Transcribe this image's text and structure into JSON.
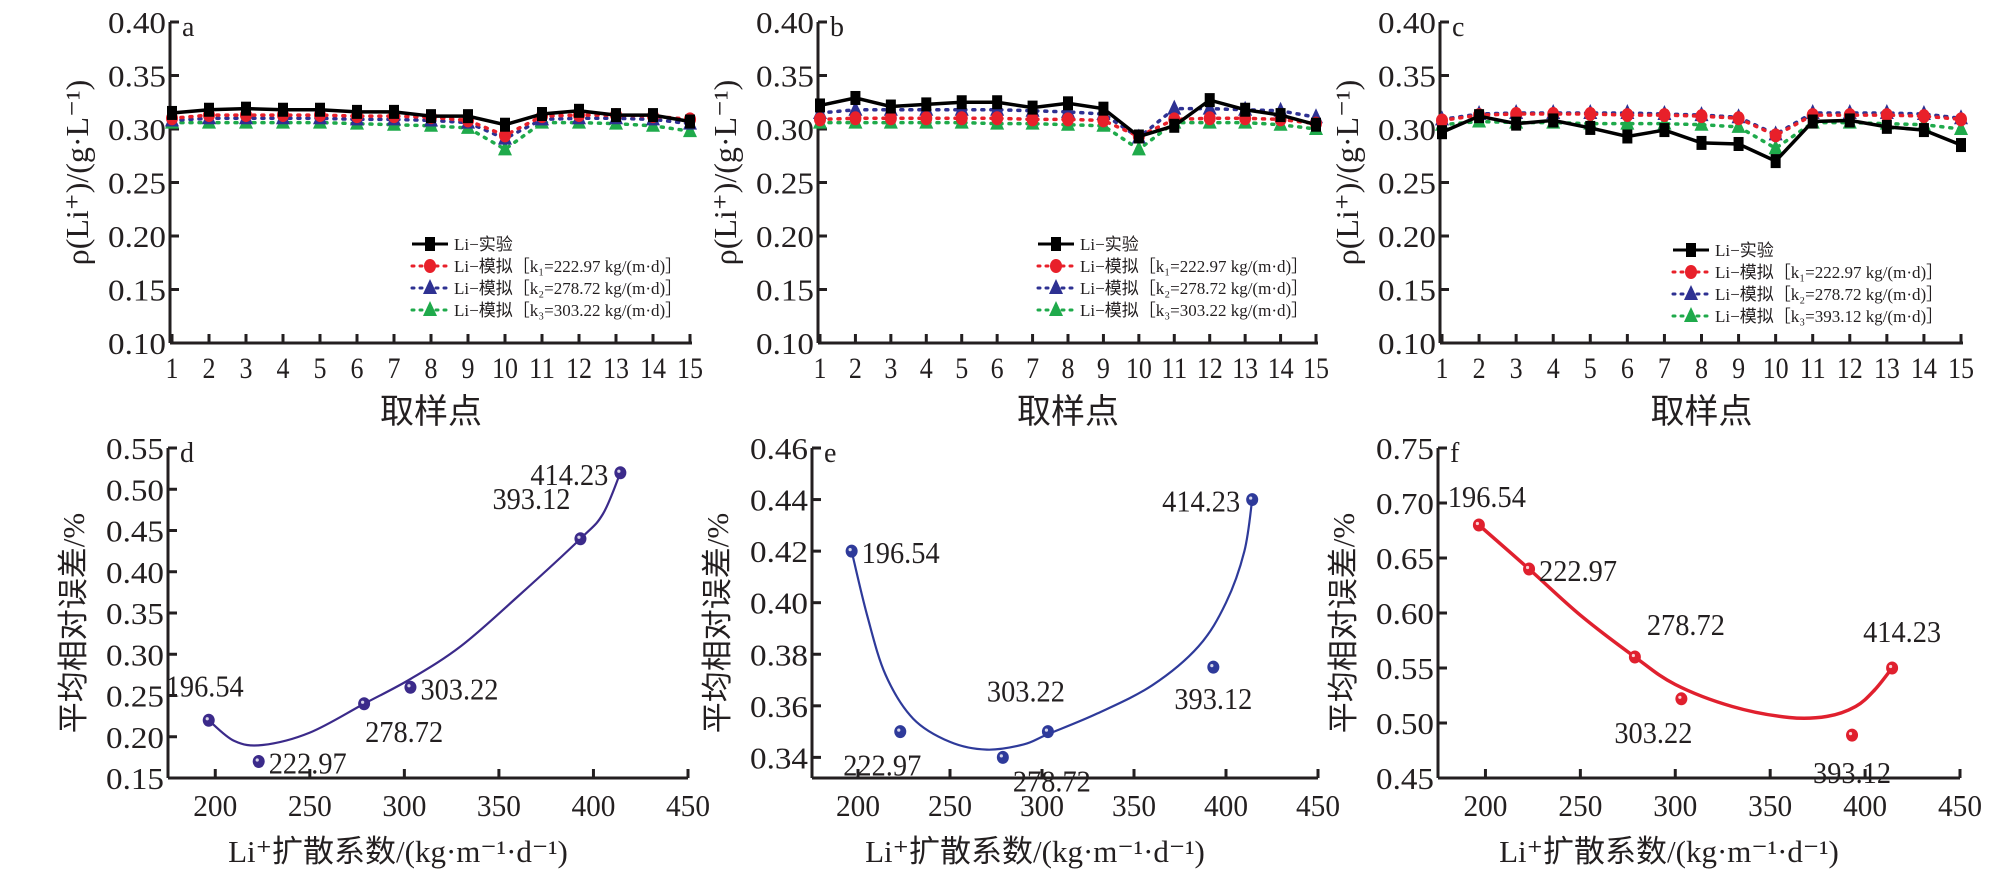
{
  "figure": {
    "panels_top_xlabel": "取样点",
    "panels_top_ylabel": "ρ(Li⁺)/(g·L⁻¹)",
    "panels_bottom_xlabel": "Li⁺扩散系数/(kg·m⁻¹·d⁻¹)",
    "panels_bottom_ylabel": "平均相对误差/%"
  },
  "colors": {
    "experiment": "#000000",
    "k1": "#e8202a",
    "k2": "#2e3192",
    "k3": "#1faa4b",
    "fit_d": "#3b2a8a",
    "fit_e": "#2e3a9a",
    "fit_f": "#e0202e"
  },
  "chart_data": [
    {
      "id": "a",
      "panel_letter": "a",
      "type": "line",
      "title": "",
      "xlabel": "取样点",
      "ylabel": "ρ(Li⁺)/(g·L⁻¹)",
      "x": [
        1,
        2,
        3,
        4,
        5,
        6,
        7,
        8,
        9,
        10,
        11,
        12,
        13,
        14,
        15
      ],
      "xticks": [
        "1",
        "2",
        "3",
        "4",
        "5",
        "6",
        "7",
        "8",
        "9",
        "10",
        "11",
        "12",
        "13",
        "14",
        "15"
      ],
      "ylim": [
        0.1,
        0.4
      ],
      "yticks": [
        "0.10",
        "0.15",
        "0.20",
        "0.25",
        "0.30",
        "0.35",
        "0.40"
      ],
      "legend_position": "bottom-right",
      "series": [
        {
          "name": "Li−实验",
          "style": "solid",
          "marker": "square",
          "color_key": "experiment",
          "values": [
            0.315,
            0.318,
            0.319,
            0.318,
            0.318,
            0.316,
            0.316,
            0.312,
            0.312,
            0.304,
            0.314,
            0.317,
            0.313,
            0.313,
            0.307
          ]
        },
        {
          "name": "Li−模拟［k₁=222.97 kg/(m·d)］",
          "style": "dotted",
          "marker": "circle",
          "color_key": "k1",
          "values": [
            0.31,
            0.313,
            0.313,
            0.313,
            0.313,
            0.312,
            0.312,
            0.311,
            0.308,
            0.294,
            0.312,
            0.313,
            0.313,
            0.312,
            0.309
          ]
        },
        {
          "name": "Li−模拟［k₂=278.72 kg/(m·d)］",
          "style": "dotted",
          "marker": "triangle",
          "color_key": "k2",
          "values": [
            0.308,
            0.31,
            0.31,
            0.31,
            0.31,
            0.309,
            0.309,
            0.308,
            0.306,
            0.291,
            0.309,
            0.31,
            0.31,
            0.309,
            0.305
          ]
        },
        {
          "name": "Li−模拟［k₃=303.22 kg/(m·d)］",
          "style": "dotted",
          "marker": "triangle",
          "color_key": "k3",
          "values": [
            0.306,
            0.306,
            0.306,
            0.306,
            0.306,
            0.305,
            0.304,
            0.303,
            0.301,
            0.281,
            0.306,
            0.306,
            0.305,
            0.303,
            0.298
          ]
        }
      ]
    },
    {
      "id": "b",
      "panel_letter": "b",
      "type": "line",
      "title": "",
      "xlabel": "取样点",
      "ylabel": "ρ(Li⁺)/(g·L⁻¹)",
      "x": [
        1,
        2,
        3,
        4,
        5,
        6,
        7,
        8,
        9,
        10,
        11,
        12,
        13,
        14,
        15
      ],
      "xticks": [
        "1",
        "2",
        "3",
        "4",
        "5",
        "6",
        "7",
        "8",
        "9",
        "10",
        "11",
        "12",
        "13",
        "14",
        "15"
      ],
      "ylim": [
        0.1,
        0.4
      ],
      "yticks": [
        "0.10",
        "0.15",
        "0.20",
        "0.25",
        "0.30",
        "0.35",
        "0.40"
      ],
      "legend_position": "bottom-right",
      "series": [
        {
          "name": "Li−实验",
          "style": "solid",
          "marker": "square",
          "color_key": "experiment",
          "values": [
            0.322,
            0.329,
            0.321,
            0.323,
            0.325,
            0.325,
            0.32,
            0.324,
            0.319,
            0.293,
            0.303,
            0.327,
            0.318,
            0.313,
            0.304
          ]
        },
        {
          "name": "Li−模拟［k₁=222.97 kg/(m·d)］",
          "style": "dotted",
          "marker": "circle",
          "color_key": "k1",
          "values": [
            0.309,
            0.31,
            0.31,
            0.31,
            0.31,
            0.31,
            0.309,
            0.309,
            0.308,
            0.293,
            0.309,
            0.31,
            0.31,
            0.309,
            0.305
          ]
        },
        {
          "name": "Li−模拟［k₂=278.72 kg/(m·d)］",
          "style": "dotted",
          "marker": "triangle",
          "color_key": "k2",
          "values": [
            0.315,
            0.318,
            0.318,
            0.318,
            0.318,
            0.318,
            0.317,
            0.316,
            0.314,
            0.292,
            0.319,
            0.319,
            0.318,
            0.317,
            0.311
          ]
        },
        {
          "name": "Li−模拟［k₃=303.22 kg/(m·d)］",
          "style": "dotted",
          "marker": "triangle",
          "color_key": "k3",
          "values": [
            0.306,
            0.306,
            0.306,
            0.306,
            0.306,
            0.305,
            0.305,
            0.304,
            0.303,
            0.281,
            0.306,
            0.306,
            0.306,
            0.304,
            0.3
          ]
        }
      ]
    },
    {
      "id": "c",
      "panel_letter": "c",
      "type": "line",
      "title": "",
      "xlabel": "取样点",
      "ylabel": "ρ(Li⁺)/(g·L⁻¹)",
      "x": [
        1,
        2,
        3,
        4,
        5,
        6,
        7,
        8,
        9,
        10,
        11,
        12,
        13,
        14,
        15
      ],
      "xticks": [
        "1",
        "2",
        "3",
        "4",
        "5",
        "6",
        "7",
        "8",
        "9",
        "10",
        "11",
        "12",
        "13",
        "14",
        "15"
      ],
      "ylim": [
        0.1,
        0.4
      ],
      "yticks": [
        "0.10",
        "0.15",
        "0.20",
        "0.25",
        "0.30",
        "0.35",
        "0.40"
      ],
      "legend_position": "bottom-right",
      "series": [
        {
          "name": "Li−实验",
          "style": "solid",
          "marker": "square",
          "color_key": "experiment",
          "values": [
            0.297,
            0.312,
            0.305,
            0.308,
            0.301,
            0.293,
            0.299,
            0.287,
            0.286,
            0.27,
            0.307,
            0.308,
            0.302,
            0.299,
            0.285
          ]
        },
        {
          "name": "Li−模拟［k₁=222.97 kg/(m·d)］",
          "style": "dotted",
          "marker": "circle",
          "color_key": "k1",
          "values": [
            0.308,
            0.313,
            0.314,
            0.314,
            0.314,
            0.313,
            0.313,
            0.312,
            0.31,
            0.294,
            0.313,
            0.313,
            0.313,
            0.312,
            0.309
          ]
        },
        {
          "name": "Li−模拟［k₂=278.72 kg/(m·d)］",
          "style": "dotted",
          "marker": "triangle",
          "color_key": "k2",
          "values": [
            0.309,
            0.314,
            0.315,
            0.315,
            0.315,
            0.315,
            0.314,
            0.313,
            0.311,
            0.295,
            0.315,
            0.315,
            0.315,
            0.314,
            0.31
          ]
        },
        {
          "name": "Li−模拟［k₃=393.12 kg/(m·d)］",
          "style": "dotted",
          "marker": "triangle",
          "color_key": "k3",
          "values": [
            0.304,
            0.307,
            0.306,
            0.306,
            0.305,
            0.305,
            0.305,
            0.304,
            0.302,
            0.282,
            0.306,
            0.306,
            0.305,
            0.304,
            0.3
          ]
        }
      ]
    },
    {
      "id": "d",
      "panel_letter": "d",
      "type": "scatter",
      "title": "",
      "xlabel": "Li⁺扩散系数/(kg·m⁻¹·d⁻¹)",
      "ylabel": "平均相对误差/%",
      "xlim": [
        175,
        450
      ],
      "xticks": [
        200,
        250,
        300,
        350,
        400,
        450
      ],
      "ylim": [
        0.15,
        0.55
      ],
      "yticks": [
        "0.15",
        "0.20",
        "0.25",
        "0.30",
        "0.35",
        "0.40",
        "0.45",
        "0.50",
        "0.55"
      ],
      "color_key": "fit_d",
      "points": [
        {
          "x": 196.54,
          "y": 0.22,
          "label": "196.54",
          "label_pos": "above"
        },
        {
          "x": 222.97,
          "y": 0.17,
          "label": "222.97",
          "label_pos": "right"
        },
        {
          "x": 278.72,
          "y": 0.24,
          "label": "278.72",
          "label_pos": "below"
        },
        {
          "x": 303.22,
          "y": 0.26,
          "label": "303.22",
          "label_pos": "right"
        },
        {
          "x": 393.12,
          "y": 0.44,
          "label": "393.12",
          "label_pos": "above-left"
        },
        {
          "x": 414.23,
          "y": 0.52,
          "label": "414.23",
          "label_pos": "left"
        }
      ],
      "fit_curve": [
        [
          196.54,
          0.22
        ],
        [
          210,
          0.195
        ],
        [
          225,
          0.19
        ],
        [
          250,
          0.205
        ],
        [
          278.72,
          0.24
        ],
        [
          303.22,
          0.27
        ],
        [
          330,
          0.31
        ],
        [
          360,
          0.37
        ],
        [
          393.12,
          0.44
        ],
        [
          405,
          0.47
        ],
        [
          414.23,
          0.52
        ]
      ]
    },
    {
      "id": "e",
      "panel_letter": "e",
      "type": "scatter",
      "title": "",
      "xlabel": "Li⁺扩散系数/(kg·m⁻¹·d⁻¹)",
      "ylabel": "平均相对误差/%",
      "xlim": [
        175,
        450
      ],
      "xticks": [
        200,
        250,
        300,
        350,
        400,
        450
      ],
      "ylim": [
        0.332,
        0.46
      ],
      "yticks": [
        "0.34",
        "0.36",
        "0.38",
        "0.40",
        "0.42",
        "0.44",
        "0.46"
      ],
      "color_key": "fit_e",
      "points": [
        {
          "x": 196.54,
          "y": 0.42,
          "label": "196.54",
          "label_pos": "right"
        },
        {
          "x": 222.97,
          "y": 0.35,
          "label": "222.97",
          "label_pos": "below"
        },
        {
          "x": 278.72,
          "y": 0.34,
          "label": "278.72",
          "label_pos": "below-right"
        },
        {
          "x": 303.22,
          "y": 0.35,
          "label": "303.22",
          "label_pos": "above"
        },
        {
          "x": 393.12,
          "y": 0.375,
          "label": "393.12",
          "label_pos": "below"
        },
        {
          "x": 414.23,
          "y": 0.44,
          "label": "414.23",
          "label_pos": "left"
        }
      ],
      "fit_curve": [
        [
          196.54,
          0.42
        ],
        [
          205,
          0.395
        ],
        [
          215,
          0.372
        ],
        [
          230,
          0.355
        ],
        [
          250,
          0.346
        ],
        [
          270,
          0.343
        ],
        [
          290,
          0.345
        ],
        [
          303.22,
          0.349
        ],
        [
          330,
          0.357
        ],
        [
          360,
          0.368
        ],
        [
          385,
          0.383
        ],
        [
          400,
          0.4
        ],
        [
          410,
          0.42
        ],
        [
          414.23,
          0.44
        ]
      ]
    },
    {
      "id": "f",
      "panel_letter": "f",
      "type": "scatter",
      "title": "",
      "xlabel": "Li⁺扩散系数/(kg·m⁻¹·d⁻¹)",
      "ylabel": "平均相对误差/%",
      "xlim": [
        175,
        450
      ],
      "xticks": [
        200,
        250,
        300,
        350,
        400,
        450
      ],
      "ylim": [
        0.45,
        0.75
      ],
      "yticks": [
        "0.45",
        "0.50",
        "0.55",
        "0.60",
        "0.65",
        "0.70",
        "0.75"
      ],
      "color_key": "fit_f",
      "points": [
        {
          "x": 196.54,
          "y": 0.68,
          "label": "196.54",
          "label_pos": "above"
        },
        {
          "x": 222.97,
          "y": 0.64,
          "label": "222.97",
          "label_pos": "right"
        },
        {
          "x": 278.72,
          "y": 0.56,
          "label": "278.72",
          "label_pos": "above-right"
        },
        {
          "x": 303.22,
          "y": 0.522,
          "label": "303.22",
          "label_pos": "below"
        },
        {
          "x": 393.12,
          "y": 0.489,
          "label": "393.12",
          "label_pos": "below"
        },
        {
          "x": 414.23,
          "y": 0.55,
          "label": "414.23",
          "label_pos": "above"
        }
      ],
      "fit_curve": [
        [
          196.54,
          0.68
        ],
        [
          222.97,
          0.64
        ],
        [
          250,
          0.598
        ],
        [
          278.72,
          0.56
        ],
        [
          300,
          0.535
        ],
        [
          330,
          0.515
        ],
        [
          360,
          0.505
        ],
        [
          380,
          0.506
        ],
        [
          395,
          0.515
        ],
        [
          405,
          0.53
        ],
        [
          414.23,
          0.55
        ]
      ]
    }
  ]
}
